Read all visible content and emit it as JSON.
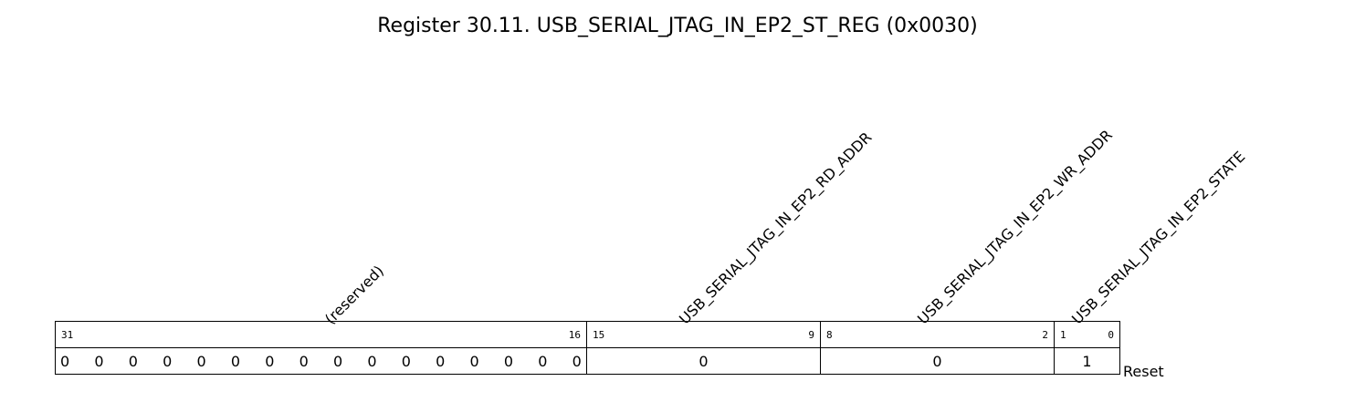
{
  "title": "Register 30.11. USB_SERIAL_JTAG_IN_EP2_ST_REG (0x0030)",
  "fields": [
    {
      "name": "(reserved)",
      "bit_high": "31",
      "bit_low": "16",
      "reset": [
        "0",
        "0",
        "0",
        "0",
        "0",
        "0",
        "0",
        "0",
        "0",
        "0",
        "0",
        "0",
        "0",
        "0",
        "0",
        "0"
      ]
    },
    {
      "name": "USB_SERIAL_JTAG_IN_EP2_RD_ADDR",
      "bit_high": "15",
      "bit_low": "9",
      "reset": "0"
    },
    {
      "name": "USB_SERIAL_JTAG_IN_EP2_WR_ADDR",
      "bit_high": "8",
      "bit_low": "2",
      "reset": "0"
    },
    {
      "name": "USB_SERIAL_JTAG_IN_EP2_STATE",
      "bit_high": "1",
      "bit_low": "0",
      "reset": "1"
    }
  ],
  "reset_label": "Reset"
}
